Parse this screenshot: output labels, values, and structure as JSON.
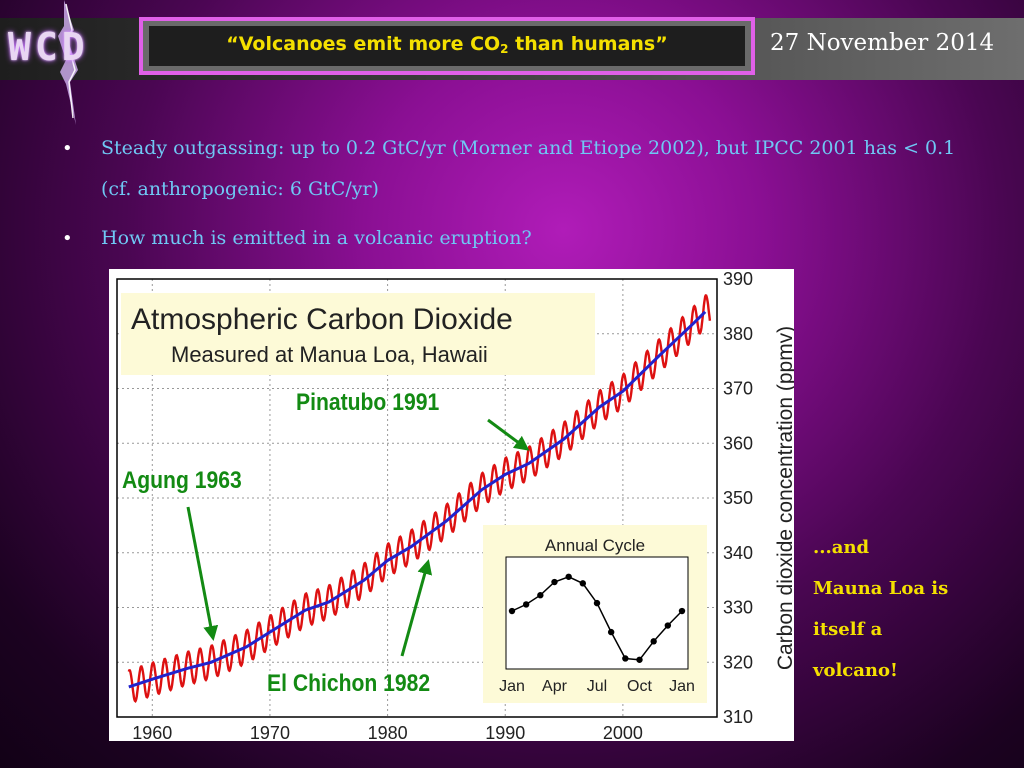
{
  "header": {
    "logo_text": "WCD",
    "title_main": "“Volcanoes emit more CO",
    "title_sub": "2",
    "title_end": " than humans”",
    "date": "27 November 2014"
  },
  "bullets": [
    "Steady outgassing: up to 0.2 GtC/yr (Morner and Etiope 2002), but IPCC 2001 has < 0.1 (cf. anthropogenic: 6 GtC/yr)",
    "How much is emitted in a volcanic eruption?"
  ],
  "side_note": [
    "...and",
    "Mauna Loa is",
    "itself a",
    "volcano!"
  ],
  "annotations": {
    "pinatubo": "Pinatubo 1991",
    "agung": "Agung 1963",
    "el_chichon": "El Chichon 1982"
  },
  "colors": {
    "title": "#f4e000",
    "bullet_text": "#6fc8f4",
    "annotation": "#138a13",
    "seasonal": "#dd1111",
    "trend": "#2222cc"
  },
  "chart_data": [
    {
      "type": "line",
      "title": "Atmospheric Carbon Dioxide",
      "subtitle": "Measured at Manua Loa, Hawaii",
      "ylabel": "Carbon dioxide concentration (ppmv)",
      "xlabel": "",
      "xlim": [
        1957,
        2008
      ],
      "ylim": [
        310,
        390
      ],
      "xticks": [
        "1960",
        "1970",
        "1980",
        "1990",
        "2000"
      ],
      "yticks": [
        "310",
        "320",
        "330",
        "340",
        "350",
        "360",
        "370",
        "380",
        "390"
      ],
      "grid": true,
      "series": [
        {
          "key": "trend",
          "x": [
            1958,
            1960,
            1963,
            1965,
            1968,
            1970,
            1973,
            1975,
            1978,
            1980,
            1982,
            1985,
            1988,
            1990,
            1992,
            1995,
            1998,
            2000,
            2003,
            2006,
            2007
          ],
          "y": [
            315.5,
            316.9,
            318.9,
            320.0,
            322.8,
            325.5,
            329.5,
            331.0,
            335.0,
            338.6,
            341.1,
            345.8,
            351.5,
            354.3,
            356.3,
            360.8,
            366.6,
            369.5,
            375.8,
            381.9,
            384.0
          ]
        }
      ],
      "seasonal_amplitude_ppmv": 3
    },
    {
      "type": "line",
      "title": "Annual Cycle",
      "categories": [
        "Jan",
        "Feb",
        "Mar",
        "Apr",
        "May",
        "Jun",
        "Jul",
        "Aug",
        "Sep",
        "Oct",
        "Nov",
        "Dec",
        "Jan"
      ],
      "tick_labels": [
        "Jan",
        "Apr",
        "Jul",
        "Oct",
        "Jan"
      ],
      "values": [
        0.4,
        0.9,
        1.6,
        2.6,
        3.0,
        2.5,
        1.0,
        -1.2,
        -3.2,
        -3.3,
        -1.9,
        -0.7,
        0.4
      ],
      "ylim": [
        -4,
        4.5
      ]
    }
  ]
}
